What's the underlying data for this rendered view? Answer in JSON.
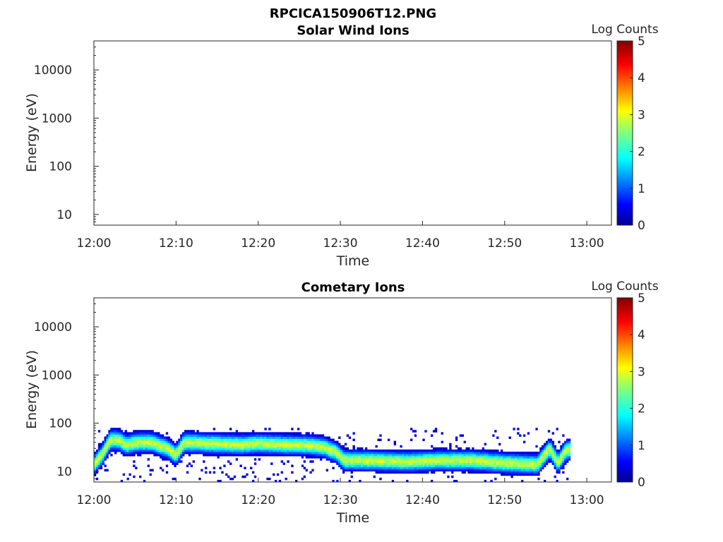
{
  "figure_title": "RPCICA150906T12.PNG",
  "colormap": {
    "name": "jet"
  },
  "chart_data": [
    {
      "type": "heatmap",
      "title": "Solar Wind Ions",
      "xlabel": "Time",
      "ylabel": "Energy (eV)",
      "x_tick_labels": [
        "12:00",
        "12:10",
        "12:20",
        "12:30",
        "12:40",
        "12:50",
        "13:00"
      ],
      "x_ticks_minutes": [
        0,
        10,
        20,
        30,
        40,
        50,
        60
      ],
      "xlim_minutes": [
        0,
        63
      ],
      "y_scale": "log",
      "y_tick_labels": [
        "10",
        "100",
        "1000",
        "10000"
      ],
      "y_ticks": [
        10,
        100,
        1000,
        10000
      ],
      "ylim": [
        6,
        40000
      ],
      "colorbar": {
        "label": "Log Counts",
        "ticks": [
          "0",
          "1",
          "2",
          "3",
          "4",
          "5"
        ],
        "range": [
          0,
          5
        ]
      },
      "data": []
    },
    {
      "type": "heatmap",
      "title": "Cometary Ions",
      "xlabel": "Time",
      "ylabel": "Energy (eV)",
      "x_tick_labels": [
        "12:00",
        "12:10",
        "12:20",
        "12:30",
        "12:40",
        "12:50",
        "13:00"
      ],
      "x_ticks_minutes": [
        0,
        10,
        20,
        30,
        40,
        50,
        60
      ],
      "xlim_minutes": [
        0,
        63
      ],
      "y_scale": "log",
      "y_tick_labels": [
        "10",
        "100",
        "1000",
        "10000"
      ],
      "y_ticks": [
        10,
        100,
        1000,
        10000
      ],
      "ylim": [
        6,
        40000
      ],
      "colorbar": {
        "label": "Log Counts",
        "ticks": [
          "0",
          "1",
          "2",
          "3",
          "4",
          "5"
        ],
        "range": [
          0,
          5
        ]
      },
      "data_end_minute": 57.8,
      "band_peak_energy_ev": [
        [
          0,
          14
        ],
        [
          1,
          22
        ],
        [
          2,
          45
        ],
        [
          3,
          45
        ],
        [
          4,
          35
        ],
        [
          5,
          40
        ],
        [
          7,
          40
        ],
        [
          9,
          30
        ],
        [
          10,
          22
        ],
        [
          11,
          40
        ],
        [
          14,
          38
        ],
        [
          18,
          36
        ],
        [
          20,
          38
        ],
        [
          23,
          36
        ],
        [
          26,
          35
        ],
        [
          28,
          32
        ],
        [
          29.5,
          25
        ],
        [
          30.5,
          17
        ],
        [
          33,
          17
        ],
        [
          38,
          16
        ],
        [
          42,
          17
        ],
        [
          46,
          17
        ],
        [
          50,
          15
        ],
        [
          54,
          14
        ],
        [
          55.5,
          30
        ],
        [
          56.5,
          15
        ],
        [
          57.5,
          28
        ]
      ],
      "max_log_counts": 3
    }
  ]
}
